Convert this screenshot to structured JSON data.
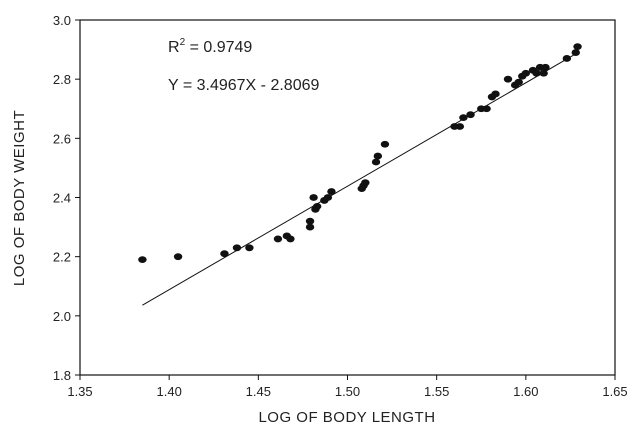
{
  "chart_data": {
    "type": "scatter",
    "xlabel": "LOG OF BODY LENGTH",
    "ylabel": "LOG OF BODY WEIGHT",
    "xlim": [
      1.35,
      1.65
    ],
    "ylim": [
      1.8,
      3.0
    ],
    "xticks": [
      "1.35",
      "1.40",
      "1.45",
      "1.50",
      "1.55",
      "1.60",
      "1.65"
    ],
    "yticks": [
      "1.8",
      "2.0",
      "2.2",
      "2.4",
      "2.6",
      "2.8",
      "3.0"
    ],
    "grid": false,
    "annotations": {
      "r2_label": "R",
      "r2_sup": "2",
      "r2_value": " = 0.9749",
      "equation": "Y = 3.4967X - 2.8069"
    },
    "trendline": {
      "slope": 3.4967,
      "intercept": -2.8069,
      "x_range": [
        1.385,
        1.629
      ]
    },
    "points": [
      [
        1.385,
        2.19
      ],
      [
        1.405,
        2.2
      ],
      [
        1.431,
        2.21
      ],
      [
        1.438,
        2.23
      ],
      [
        1.445,
        2.23
      ],
      [
        1.461,
        2.26
      ],
      [
        1.466,
        2.27
      ],
      [
        1.468,
        2.26
      ],
      [
        1.479,
        2.3
      ],
      [
        1.479,
        2.32
      ],
      [
        1.481,
        2.4
      ],
      [
        1.482,
        2.36
      ],
      [
        1.483,
        2.37
      ],
      [
        1.487,
        2.39
      ],
      [
        1.489,
        2.4
      ],
      [
        1.491,
        2.42
      ],
      [
        1.508,
        2.43
      ],
      [
        1.509,
        2.44
      ],
      [
        1.51,
        2.45
      ],
      [
        1.516,
        2.52
      ],
      [
        1.517,
        2.54
      ],
      [
        1.521,
        2.58
      ],
      [
        1.56,
        2.64
      ],
      [
        1.563,
        2.64
      ],
      [
        1.565,
        2.67
      ],
      [
        1.569,
        2.68
      ],
      [
        1.575,
        2.7
      ],
      [
        1.578,
        2.7
      ],
      [
        1.581,
        2.74
      ],
      [
        1.583,
        2.75
      ],
      [
        1.59,
        2.8
      ],
      [
        1.594,
        2.78
      ],
      [
        1.596,
        2.79
      ],
      [
        1.598,
        2.81
      ],
      [
        1.6,
        2.82
      ],
      [
        1.604,
        2.83
      ],
      [
        1.606,
        2.82
      ],
      [
        1.608,
        2.84
      ],
      [
        1.61,
        2.82
      ],
      [
        1.611,
        2.84
      ],
      [
        1.623,
        2.87
      ],
      [
        1.628,
        2.89
      ],
      [
        1.629,
        2.91
      ]
    ]
  }
}
